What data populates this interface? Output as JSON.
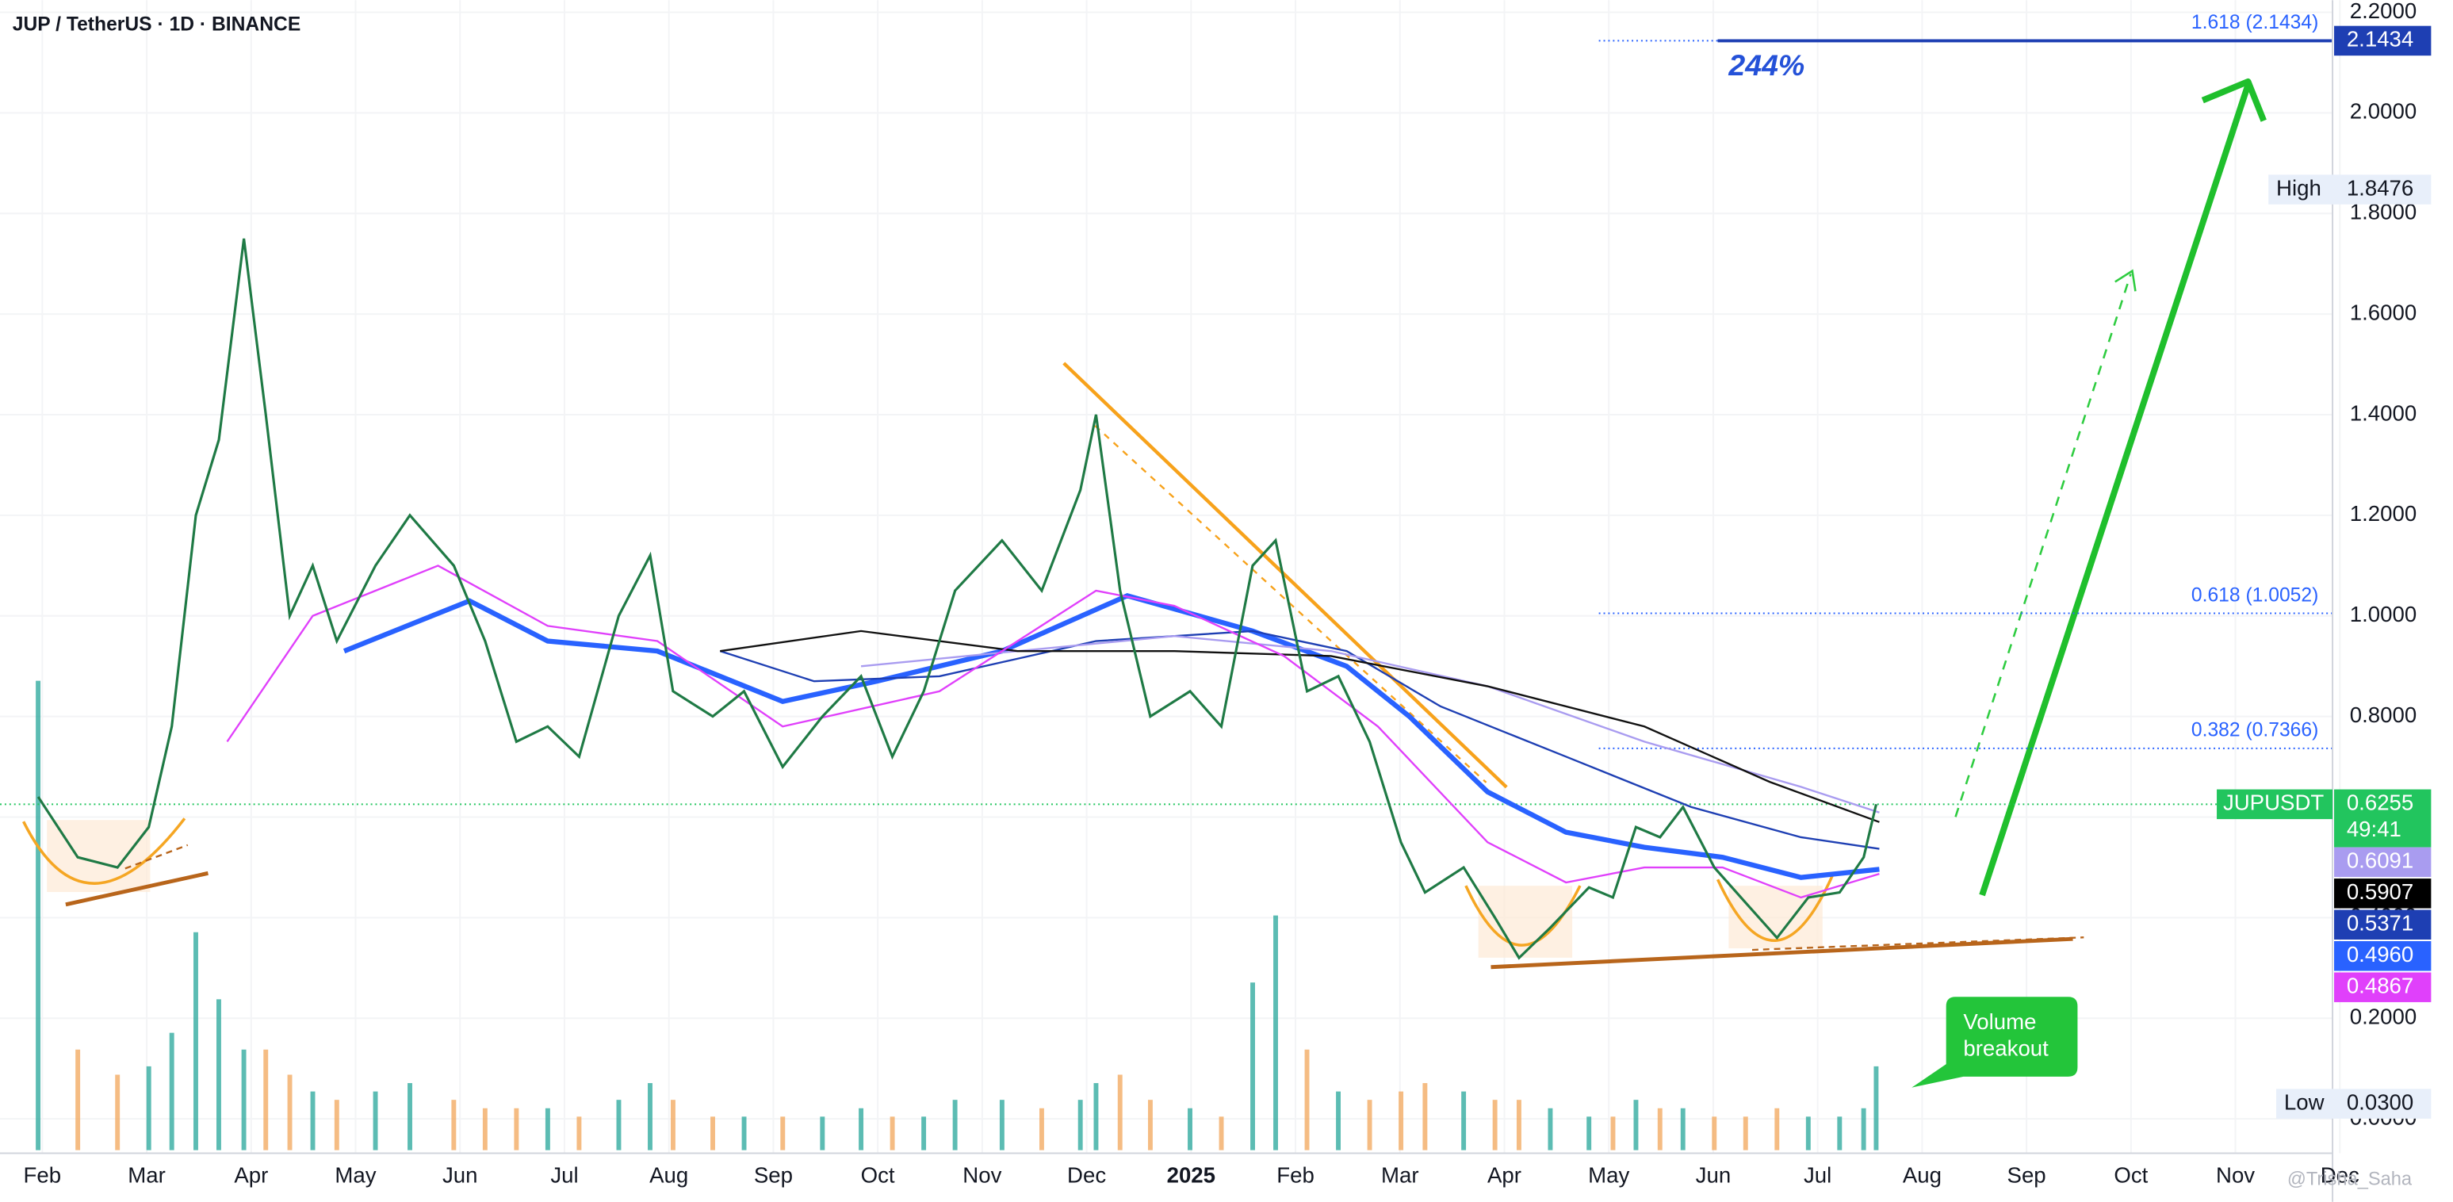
{
  "chart_data": {
    "type": "line",
    "title": "JUP / TetherUS · 1D · BINANCE",
    "symbol": "JUPUSDT",
    "color": "#1f7a45",
    "x": [
      -0.04,
      0.34,
      0.72,
      1.02,
      1.24,
      1.47,
      1.69,
      1.93,
      2.14,
      2.37,
      2.59,
      2.82,
      3.19,
      3.52,
      3.94,
      4.24,
      4.54,
      4.84,
      5.14,
      5.52,
      5.82,
      6.04,
      6.42,
      6.72,
      7.09,
      7.47,
      7.84,
      8.14,
      8.44,
      8.74,
      9.19,
      9.57,
      9.94,
      10.09,
      10.32,
      10.61,
      10.99,
      11.29,
      11.59,
      11.81,
      12.11,
      12.41,
      12.71,
      13.01,
      13.24,
      13.61,
      13.91,
      14.14,
      14.44,
      14.81,
      15.04,
      15.26,
      15.49,
      15.71,
      16.01,
      16.31,
      16.61,
      16.91,
      17.21,
      17.44,
      17.56
    ],
    "values": [
      0.64,
      0.52,
      0.5,
      0.58,
      0.78,
      1.2,
      1.35,
      1.75,
      1.4,
      1.0,
      1.1,
      0.95,
      1.1,
      1.2,
      1.1,
      0.95,
      0.75,
      0.78,
      0.72,
      1.0,
      1.12,
      0.85,
      0.8,
      0.85,
      0.7,
      0.8,
      0.88,
      0.72,
      0.85,
      1.05,
      1.15,
      1.05,
      1.25,
      1.4,
      1.05,
      0.8,
      0.85,
      0.78,
      1.1,
      1.15,
      0.85,
      0.88,
      0.75,
      0.55,
      0.45,
      0.5,
      0.4,
      0.32,
      0.38,
      0.46,
      0.44,
      0.58,
      0.56,
      0.62,
      0.5,
      0.43,
      0.36,
      0.44,
      0.45,
      0.52,
      0.6255
    ],
    "volume": [
      280,
      60,
      45,
      50,
      70,
      130,
      90,
      60,
      60,
      45,
      35,
      30,
      35,
      40,
      30,
      25,
      25,
      25,
      20,
      30,
      40,
      30,
      20,
      20,
      20,
      20,
      25,
      20,
      20,
      30,
      30,
      25,
      30,
      40,
      45,
      30,
      25,
      20,
      100,
      140,
      60,
      35,
      30,
      35,
      40,
      35,
      30,
      30,
      25,
      20,
      20,
      30,
      25,
      25,
      20,
      20,
      25,
      20,
      20,
      25,
      50
    ],
    "up_color": "#26a69a",
    "down_color": "#f2a65a",
    "overlays": [
      {
        "color": "#2962ff",
        "x": [
          2.89,
          4.09,
          4.84,
          5.89,
          7.09,
          7.99,
          9.19,
          10.39,
          11.59,
          12.49,
          13.09,
          13.84,
          14.59,
          15.34,
          16.09,
          16.84,
          17.59
        ],
        "values": [
          0.93,
          1.03,
          0.95,
          0.93,
          0.83,
          0.87,
          0.93,
          1.04,
          0.97,
          0.9,
          0.8,
          0.65,
          0.57,
          0.54,
          0.52,
          0.48,
          0.496
        ]
      },
      {
        "color": "#1e3fb3",
        "x": [
          6.49,
          7.39,
          8.59,
          10.09,
          11.59,
          12.49,
          13.39,
          14.59,
          15.79,
          16.84,
          17.59
        ],
        "values": [
          0.93,
          0.87,
          0.88,
          0.95,
          0.97,
          0.93,
          0.82,
          0.72,
          0.62,
          0.56,
          0.537
        ]
      },
      {
        "color": "#a99cf0",
        "x": [
          7.84,
          9.34,
          10.84,
          12.34,
          13.84,
          15.34,
          16.84,
          17.59
        ],
        "values": [
          0.9,
          0.93,
          0.96,
          0.93,
          0.86,
          0.75,
          0.66,
          0.609
        ]
      },
      {
        "color": "#111111",
        "x": [
          6.49,
          7.84,
          9.34,
          10.84,
          12.34,
          13.84,
          15.34,
          16.54,
          17.59
        ],
        "values": [
          0.93,
          0.97,
          0.93,
          0.93,
          0.92,
          0.86,
          0.78,
          0.67,
          0.59
        ]
      },
      {
        "color": "#e040fb",
        "x": [
          1.77,
          2.59,
          3.79,
          4.84,
          5.89,
          7.09,
          8.59,
          10.09,
          10.84,
          11.89,
          12.79,
          13.84,
          14.59,
          15.34,
          16.09,
          16.84,
          17.59
        ],
        "values": [
          0.75,
          1.0,
          1.1,
          0.98,
          0.95,
          0.78,
          0.85,
          1.05,
          1.02,
          0.92,
          0.78,
          0.55,
          0.47,
          0.5,
          0.5,
          0.44,
          0.487
        ]
      }
    ],
    "xlim": [
      -0.405,
      21.93
    ],
    "xticks": [
      {
        "value": 0,
        "label": "Feb"
      },
      {
        "value": 1,
        "label": "Mar"
      },
      {
        "value": 2,
        "label": "Apr"
      },
      {
        "value": 3,
        "label": "May"
      },
      {
        "value": 4,
        "label": "Jun"
      },
      {
        "value": 5,
        "label": "Jul"
      },
      {
        "value": 6,
        "label": "Aug"
      },
      {
        "value": 7,
        "label": "Sep"
      },
      {
        "value": 8,
        "label": "Oct"
      },
      {
        "value": 9,
        "label": "Nov"
      },
      {
        "value": 10,
        "label": "Dec"
      },
      {
        "value": 11,
        "label": "2025"
      },
      {
        "value": 12,
        "label": "Feb"
      },
      {
        "value": 13,
        "label": "Mar"
      },
      {
        "value": 14,
        "label": "Apr"
      },
      {
        "value": 15,
        "label": "May"
      },
      {
        "value": 16,
        "label": "Jun"
      },
      {
        "value": 17,
        "label": "Jul"
      },
      {
        "value": 18,
        "label": "Aug"
      },
      {
        "value": 19,
        "label": "Sep"
      },
      {
        "value": 20,
        "label": "Oct"
      },
      {
        "value": 21,
        "label": "Nov"
      },
      {
        "value": 22,
        "label": "Dec"
      }
    ],
    "ylim": [
      -0.0622,
      2.224
    ],
    "yticks": [
      {
        "value": 0,
        "label": "0.0000"
      },
      {
        "value": 0.2,
        "label": "0.2000"
      },
      {
        "value": 0.4,
        "label": "0.4000"
      },
      {
        "value": 0.6,
        "label": "0.6000"
      },
      {
        "value": 0.8,
        "label": "0.8000"
      },
      {
        "value": 1,
        "label": "1.0000"
      },
      {
        "value": 1.2,
        "label": "1.2000"
      },
      {
        "value": 1.4,
        "label": "1.4000"
      },
      {
        "value": 1.6,
        "label": "1.6000"
      },
      {
        "value": 1.8,
        "label": "1.8000"
      },
      {
        "value": 2,
        "label": "2.0000"
      },
      {
        "value": 2.2,
        "label": "2.2000"
      }
    ],
    "fib_levels": [
      {
        "label": "1.618 (2.1434)",
        "value": 2.1434
      },
      {
        "label": "0.618 (1.0052)",
        "value": 1.0052
      },
      {
        "label": "0.382 (0.7366)",
        "value": 0.7366
      }
    ],
    "last_price": 0.6255,
    "countdown": "49:41",
    "ma_labels": [
      {
        "value": 0.6091,
        "label": "0.6091",
        "color": "#a99cf0"
      },
      {
        "value": 0.5907,
        "label": "0.5907",
        "color": "#000000"
      },
      {
        "value": 0.5371,
        "label": "0.5371",
        "color": "#1e3fb3"
      },
      {
        "value": 0.496,
        "label": "0.4960",
        "color": "#2962ff"
      },
      {
        "value": 0.4867,
        "label": "0.4867",
        "color": "#e040fb"
      }
    ],
    "high": {
      "label": "High",
      "value": 1.8476
    },
    "low": {
      "label": "Low",
      "value": {
        "value": 0.03,
        "label": "0.0300"
      }
    },
    "gain": "244%",
    "callout": [
      "Volume",
      "breakout"
    ],
    "watermark": "@Trisha_Saha"
  }
}
